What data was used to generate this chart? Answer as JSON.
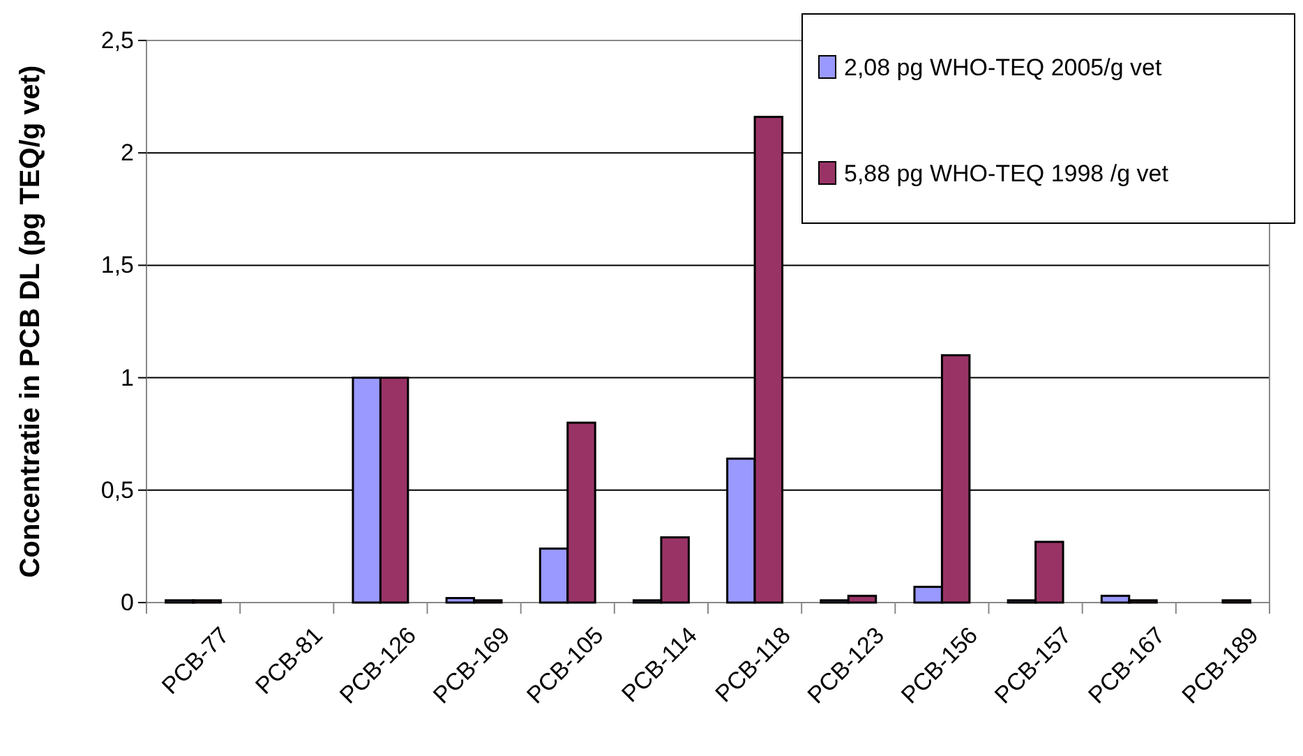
{
  "chart_data": {
    "type": "bar",
    "ylabel": "Concentratie in PCB DL (pg TEQ/g vet)",
    "categories": [
      "PCB-77",
      "PCB-81",
      "PCB-126",
      "PCB-169",
      "PCB-105",
      "PCB-114",
      "PCB-118",
      "PCB-123",
      "PCB-156",
      "PCB-157",
      "PCB-167",
      "PCB-189"
    ],
    "series": [
      {
        "name": "2,08 pg WHO-TEQ 2005/g vet",
        "color": "#9999ff",
        "values": [
          0.01,
          0,
          1,
          0.02,
          0.24,
          0.01,
          0.64,
          0.01,
          0.07,
          0.01,
          0.03,
          0
        ]
      },
      {
        "name": "5,88 pg WHO-TEQ 1998 /g vet",
        "color": "#993366",
        "values": [
          0.01,
          0,
          1,
          0.01,
          0.8,
          0.29,
          2.16,
          0.03,
          1.1,
          0.27,
          0.01,
          0.01
        ]
      }
    ],
    "ylim": [
      0,
      2.5
    ],
    "yticks": [
      {
        "value": 0,
        "label": "0"
      },
      {
        "value": 0.5,
        "label": "0,5"
      },
      {
        "value": 1,
        "label": "1"
      },
      {
        "value": 1.5,
        "label": "1,5"
      },
      {
        "value": 2,
        "label": "2"
      },
      {
        "value": 2.5,
        "label": "2,5"
      }
    ],
    "grid": "y",
    "legend": "top right"
  }
}
